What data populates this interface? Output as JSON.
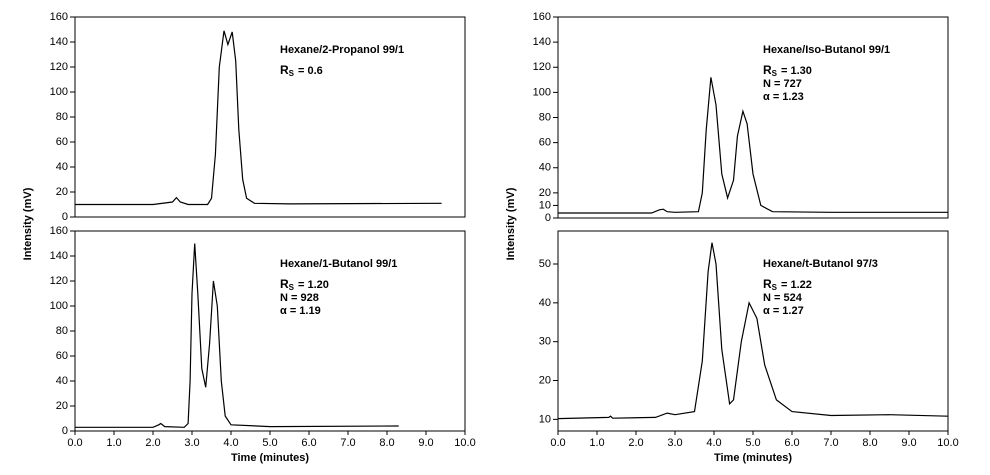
{
  "chart_data": [
    {
      "type": "line",
      "ylabel": "Intensity (mV)",
      "color": "#000000",
      "annotation": {
        "title": "Hexane/2-Propanol 99/1",
        "resolution": {
          "symbol": "R",
          "subscript": "S",
          "value": "= 0.6"
        },
        "stats": []
      },
      "xlim": [
        0,
        10
      ],
      "ylim": [
        0,
        160
      ],
      "yticks": [
        0,
        20,
        40,
        60,
        80,
        100,
        120,
        140,
        160
      ],
      "x": [
        0,
        2.0,
        2.5,
        2.6,
        2.7,
        2.9,
        3.4,
        3.5,
        3.6,
        3.7,
        3.82,
        3.92,
        4.03,
        4.12,
        4.2,
        4.3,
        4.4,
        4.6,
        5.5,
        9.4
      ],
      "values": [
        10,
        10,
        12,
        15.5,
        12,
        10,
        10,
        15,
        50,
        120,
        149,
        138,
        148,
        125,
        70,
        30,
        15,
        11,
        10.5,
        11
      ]
    },
    {
      "type": "line",
      "color": "#000000",
      "annotation": {
        "title": "Hexane/1-Butanol 99/1",
        "resolution": {
          "symbol": "R",
          "subscript": "S",
          "value": "= 1.20"
        },
        "stats": [
          "N = 928",
          "α = 1.19"
        ]
      },
      "xlabel": "Time (minutes)",
      "xlim": [
        0,
        10
      ],
      "xticks": [
        {
          "value": 0,
          "label": "0.0"
        },
        {
          "value": 1,
          "label": "1.0"
        },
        {
          "value": 2,
          "label": "2.0"
        },
        {
          "value": 3,
          "label": "3.0"
        },
        {
          "value": 4,
          "label": "4.0"
        },
        {
          "value": 5,
          "label": "5.0"
        },
        {
          "value": 6,
          "label": "6.0"
        },
        {
          "value": 7,
          "label": "7.0"
        },
        {
          "value": 8,
          "label": "8.0"
        },
        {
          "value": 9,
          "label": "9.0"
        },
        {
          "value": 10,
          "label": "10.0"
        }
      ],
      "ylim": [
        0,
        160
      ],
      "yticks": [
        0,
        20,
        40,
        60,
        80,
        100,
        120,
        140,
        160
      ],
      "x": [
        0,
        2.0,
        2.15,
        2.2,
        2.3,
        2.8,
        2.9,
        2.95,
        3.0,
        3.07,
        3.15,
        3.25,
        3.35,
        3.45,
        3.55,
        3.65,
        3.75,
        3.85,
        4.0,
        5.0,
        8.3
      ],
      "values": [
        3,
        3,
        5,
        6,
        3.5,
        3,
        6,
        40,
        110,
        150,
        110,
        50,
        35,
        70,
        120,
        100,
        40,
        12,
        5,
        3.5,
        4
      ]
    },
    {
      "type": "line",
      "ylabel": "Intensity (mV)",
      "color": "#000000",
      "annotation": {
        "title": "Hexane/Iso-Butanol 99/1",
        "resolution": {
          "symbol": "R",
          "subscript": "S",
          "value": "= 1.30"
        },
        "stats": [
          "N = 727",
          "α = 1.23"
        ]
      },
      "xlim": [
        0,
        10
      ],
      "ylim": [
        0,
        160
      ],
      "yticks": [
        0,
        10,
        20,
        40,
        60,
        80,
        100,
        120,
        140,
        160
      ],
      "x": [
        0,
        2.4,
        2.6,
        2.7,
        2.8,
        3.0,
        3.6,
        3.7,
        3.8,
        3.92,
        4.05,
        4.2,
        4.35,
        4.5,
        4.6,
        4.74,
        4.85,
        5.0,
        5.2,
        5.5,
        7.0,
        10
      ],
      "values": [
        4,
        4,
        6.5,
        7,
        5,
        4.5,
        5,
        20,
        70,
        112,
        90,
        35,
        16,
        30,
        65,
        85,
        75,
        35,
        10,
        5,
        4.5,
        4.5
      ]
    },
    {
      "type": "line",
      "color": "#000000",
      "annotation": {
        "title": "Hexane/t-Butanol 97/3",
        "resolution": {
          "symbol": "R",
          "subscript": "S",
          "value": "= 1.22"
        },
        "stats": [
          "N = 524",
          "α = 1.27"
        ]
      },
      "xlabel": "Time (minutes)",
      "xlim": [
        0,
        10
      ],
      "xticks": [
        {
          "value": 0,
          "label": "0.0"
        },
        {
          "value": 1,
          "label": "1.0"
        },
        {
          "value": 2,
          "label": "2.0"
        },
        {
          "value": 3,
          "label": "3.0"
        },
        {
          "value": 4,
          "label": "4.0"
        },
        {
          "value": 5,
          "label": "5.0"
        },
        {
          "value": 6,
          "label": "6.0"
        },
        {
          "value": 7,
          "label": "7.0"
        },
        {
          "value": 8,
          "label": "8.0"
        },
        {
          "value": 9,
          "label": "9.0"
        },
        {
          "value": 10,
          "label": "10.0"
        }
      ],
      "ylim": [
        7,
        58.5
      ],
      "yticks": [
        10,
        20,
        30,
        40,
        50
      ],
      "x": [
        0,
        1.3,
        1.35,
        1.4,
        2.5,
        2.8,
        3.0,
        3.5,
        3.7,
        3.85,
        3.95,
        4.05,
        4.2,
        4.4,
        4.5,
        4.7,
        4.9,
        5.1,
        5.3,
        5.6,
        6.0,
        7.0,
        8.5,
        10
      ],
      "values": [
        10.2,
        10.5,
        10.8,
        10.3,
        10.5,
        11.6,
        11.2,
        12,
        25,
        48,
        55.5,
        50,
        28,
        14,
        15,
        30,
        40,
        36,
        24,
        15,
        12,
        11,
        11.2,
        10.8
      ]
    }
  ]
}
